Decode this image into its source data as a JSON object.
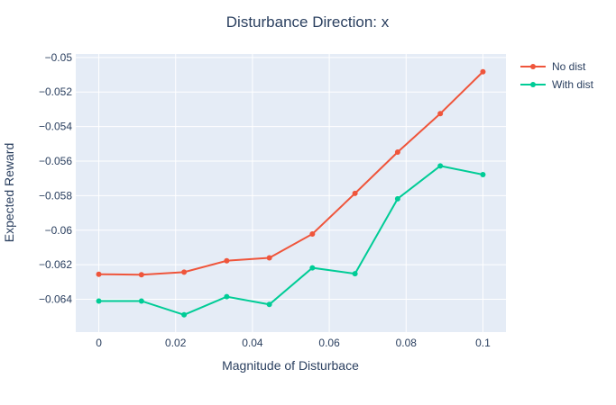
{
  "chart_data": {
    "type": "line",
    "title": "Disturbance Direction: x",
    "xlabel": "Magnitude of Disturbace",
    "ylabel": "Expected Reward",
    "x": [
      0,
      0.0111,
      0.0222,
      0.0333,
      0.0444,
      0.0556,
      0.0667,
      0.0778,
      0.0889,
      0.1
    ],
    "xlim": [
      -0.006,
      0.106
    ],
    "ylim": [
      -0.0659,
      -0.0498
    ],
    "xticks": [
      0,
      0.02,
      0.04,
      0.06,
      0.08,
      0.1
    ],
    "xtick_labels": [
      "0",
      "0.02",
      "0.04",
      "0.06",
      "0.08",
      "0.1"
    ],
    "yticks": [
      -0.064,
      -0.062,
      -0.06,
      -0.058,
      -0.056,
      -0.054,
      -0.052,
      -0.05
    ],
    "ytick_labels": [
      "−0.064",
      "−0.062",
      "−0.06",
      "−0.058",
      "−0.056",
      "−0.054",
      "−0.052",
      "−0.05"
    ],
    "grid": true,
    "legend_position": "top-right",
    "series": [
      {
        "name": "No dist",
        "color": "#ef553b",
        "values": [
          -0.06255,
          -0.06258,
          -0.06243,
          -0.06177,
          -0.0616,
          -0.06022,
          -0.05787,
          -0.05548,
          -0.05325,
          -0.05083
        ]
      },
      {
        "name": "With dist",
        "color": "#00cc96",
        "values": [
          -0.0641,
          -0.0641,
          -0.0649,
          -0.06385,
          -0.0643,
          -0.06218,
          -0.06252,
          -0.05818,
          -0.05628,
          -0.05678
        ]
      }
    ]
  }
}
